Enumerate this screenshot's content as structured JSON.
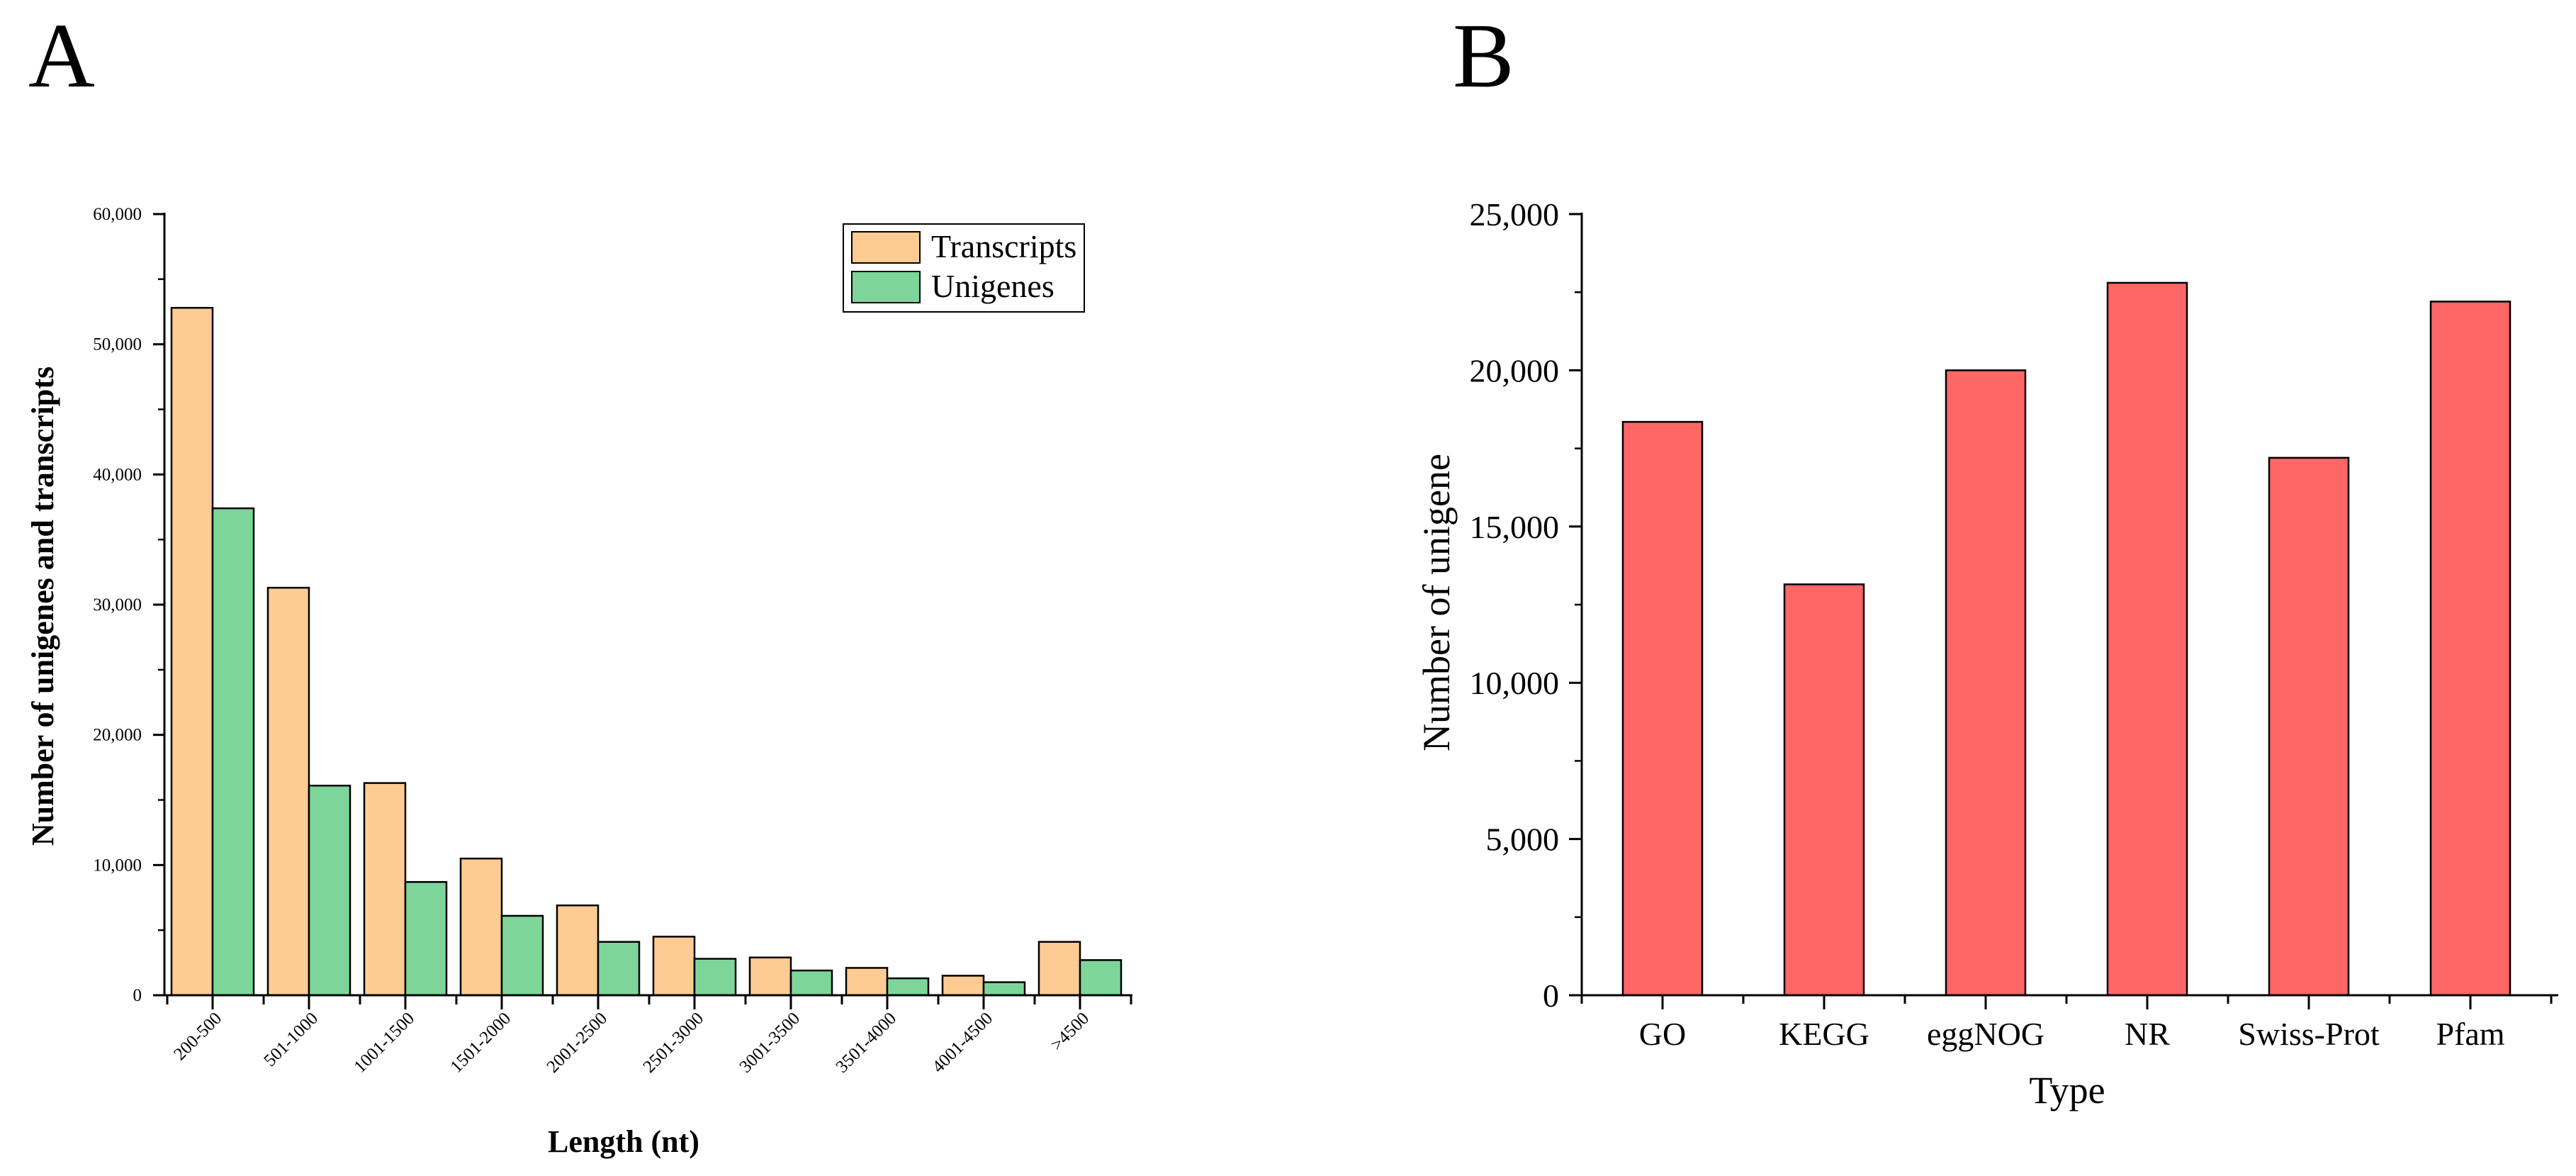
{
  "panels": {
    "a_label": "A",
    "b_label": "B"
  },
  "colors": {
    "transcripts": "#FECB92",
    "unigenes": "#7ED59A",
    "panel_b_bar": "#FF6666",
    "axis": "#000000"
  },
  "chart_data": [
    {
      "type": "bar",
      "panel": "A",
      "title": "",
      "xlabel": "Length (nt)",
      "ylabel": "Number of unigenes and transcripts",
      "categories": [
        "200-500",
        "501-1000",
        "1001-1500",
        "1501-2000",
        "2001-2500",
        "2501-3000",
        "3001-3500",
        "3501-4000",
        "4001-4500",
        ">4500"
      ],
      "series": [
        {
          "name": "Transcripts",
          "values": [
            52800,
            31300,
            16300,
            10500,
            6900,
            4500,
            2900,
            2100,
            1500,
            4100
          ]
        },
        {
          "name": "Unigenes",
          "values": [
            37400,
            16100,
            8700,
            6100,
            4100,
            2800,
            1900,
            1300,
            1000,
            2700
          ]
        }
      ],
      "ylim": [
        0,
        60000
      ],
      "yticks": [
        0,
        10000,
        20000,
        30000,
        40000,
        50000,
        60000
      ],
      "ytick_labels": [
        "0",
        "10,000",
        "20,000",
        "30,000",
        "40,000",
        "50,000",
        "60,000"
      ],
      "legend": "top-right",
      "grid": false
    },
    {
      "type": "bar",
      "panel": "B",
      "title": "",
      "xlabel": "Type",
      "ylabel": "Number of unigene",
      "categories": [
        "GO",
        "KEGG",
        "eggNOG",
        "NR",
        "Swiss-Prot",
        "Pfam"
      ],
      "values": [
        18350,
        13150,
        20000,
        22800,
        17200,
        22200
      ],
      "ylim": [
        0,
        25000
      ],
      "yticks": [
        0,
        5000,
        10000,
        15000,
        20000,
        25000
      ],
      "ytick_labels": [
        "0",
        "5,000",
        "10,000",
        "15,000",
        "20,000",
        "25,000"
      ],
      "legend": "none",
      "grid": false
    }
  ]
}
